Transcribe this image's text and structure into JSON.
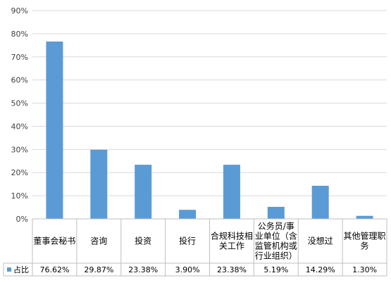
{
  "chart_data": {
    "type": "bar",
    "title": "",
    "xlabel": "",
    "ylabel": "",
    "ylim": [
      0,
      90
    ],
    "y_ticks": [
      "0%",
      "10%",
      "20%",
      "30%",
      "40%",
      "50%",
      "60%",
      "70%",
      "80%",
      "90%"
    ],
    "grid": true,
    "legend": "data-table-left",
    "categories": [
      [
        "董事会秘书"
      ],
      [
        "咨询"
      ],
      [
        "投资"
      ],
      [
        "投行"
      ],
      [
        "合规科技相",
        "关工作"
      ],
      [
        "公务员/事",
        "业单位（含",
        "监管机构或",
        "行业组织）"
      ],
      [
        "没想过"
      ],
      [
        "其他管理职",
        "务"
      ]
    ],
    "series": [
      {
        "name": "占比",
        "color": "#5b9bd5",
        "values": [
          76.62,
          29.87,
          23.38,
          3.9,
          23.38,
          5.19,
          14.29,
          1.3
        ],
        "labels": [
          "76.62%",
          "29.87%",
          "23.38%",
          "3.90%",
          "23.38%",
          "5.19%",
          "14.29%",
          "1.30%"
        ]
      }
    ]
  }
}
